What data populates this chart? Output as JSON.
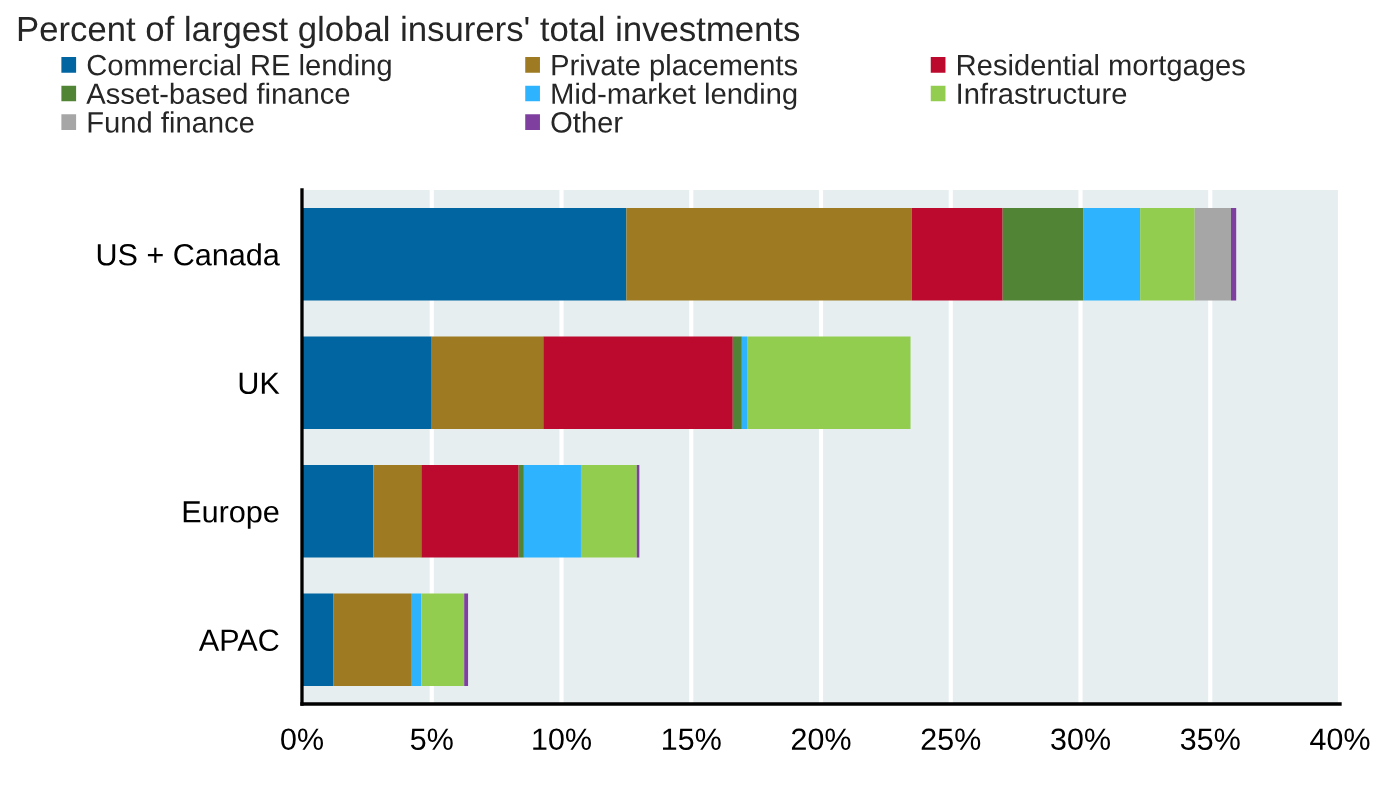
{
  "chart_data": {
    "type": "bar",
    "orientation": "horizontal",
    "stacked": true,
    "title": "Percent of largest global insurers' total investments",
    "categories": [
      "US + Canada",
      "UK",
      "Europe",
      "APAC"
    ],
    "series": [
      {
        "name": "Commercial RE lending",
        "color": "#0065a0",
        "values": [
          12.5,
          5.0,
          2.75,
          1.2
        ]
      },
      {
        "name": "Private placements",
        "color": "#9e7b22",
        "values": [
          11.0,
          4.3,
          1.85,
          3.0
        ]
      },
      {
        "name": "Residential mortgages",
        "color": "#bb0a2e",
        "values": [
          3.5,
          7.3,
          3.75,
          0
        ]
      },
      {
        "name": "Asset-based finance",
        "color": "#518535",
        "values": [
          3.1,
          0.35,
          0.2,
          0
        ]
      },
      {
        "name": "Mid-market lending",
        "color": "#2eb4ff",
        "values": [
          2.2,
          0.2,
          2.2,
          0.4
        ]
      },
      {
        "name": "Infrastructure",
        "color": "#92cd4f",
        "values": [
          2.1,
          6.3,
          2.15,
          1.65
        ]
      },
      {
        "name": "Fund finance",
        "color": "#a6a6a6",
        "values": [
          1.4,
          0,
          0,
          0
        ]
      },
      {
        "name": "Other",
        "color": "#7f3f9f",
        "values": [
          0.2,
          0,
          0.1,
          0.15
        ]
      }
    ],
    "xlim": [
      0,
      40
    ],
    "xticks": [
      {
        "value": 0,
        "label": "0%"
      },
      {
        "value": 5,
        "label": "5%"
      },
      {
        "value": 10,
        "label": "10%"
      },
      {
        "value": 15,
        "label": "15%"
      },
      {
        "value": 20,
        "label": "20%"
      },
      {
        "value": 25,
        "label": "25%"
      },
      {
        "value": 30,
        "label": "30%"
      },
      {
        "value": 35,
        "label": "35%"
      },
      {
        "value": 40,
        "label": "40%"
      }
    ],
    "grid": "x",
    "legend": "top"
  }
}
